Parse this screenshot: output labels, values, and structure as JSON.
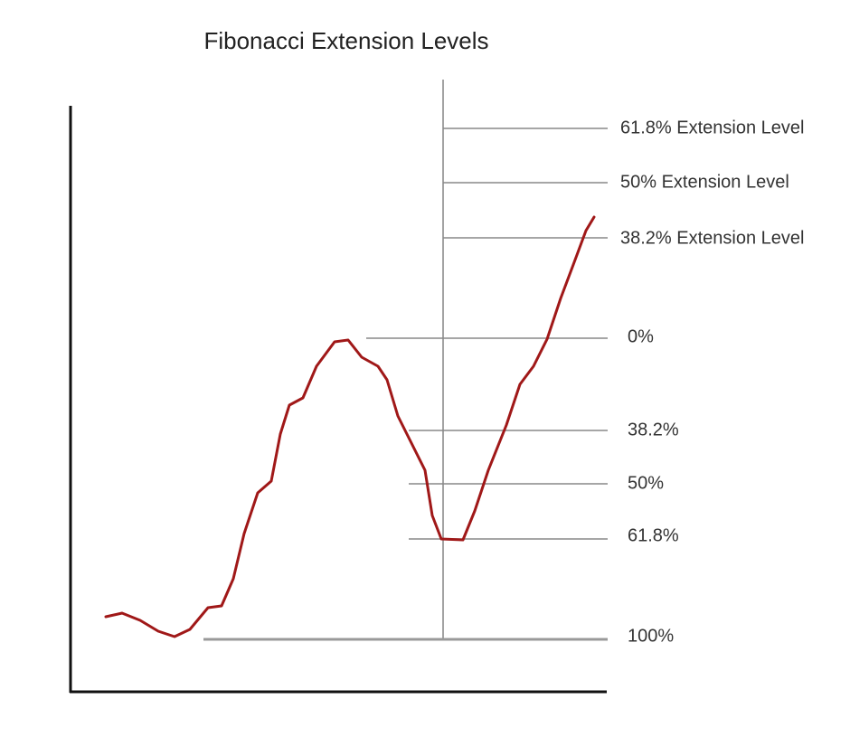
{
  "title": "Fibonacci Extension Levels",
  "levels": [
    "61.8% Extension Level",
    "50% Extension Level",
    "38.2% Extension Level",
    "0%",
    "38.2%",
    "50%",
    "61.8%",
    "100%"
  ]
}
